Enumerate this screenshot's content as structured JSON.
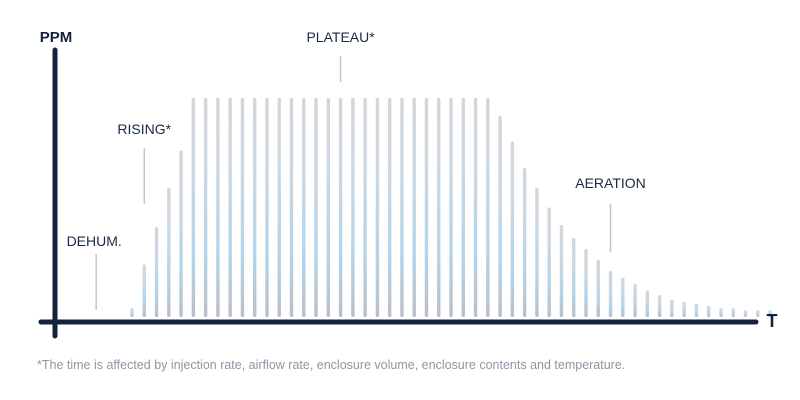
{
  "chart_data": {
    "type": "bar",
    "title": "",
    "ylabel": "PPM",
    "xlabel": "T",
    "ylim": [
      0,
      100
    ],
    "values": [
      4,
      24,
      41,
      59,
      76,
      100,
      100,
      100,
      100,
      100,
      100,
      100,
      100,
      100,
      100,
      100,
      100,
      100,
      100,
      100,
      100,
      100,
      100,
      100,
      100,
      100,
      100,
      100,
      100,
      100,
      92,
      80,
      68,
      59,
      50,
      42,
      36,
      31,
      26,
      21,
      18,
      15,
      12,
      10,
      8,
      7,
      6,
      5,
      4,
      4,
      3,
      3,
      3
    ],
    "annotations": [
      {
        "label": "DEHUM.",
        "bar_index": -3
      },
      {
        "label": "RISING*",
        "bar_index": 1
      },
      {
        "label": "PLATEAU*",
        "bar_index": 17
      },
      {
        "label": "AERATION",
        "bar_index": 39
      }
    ],
    "footnote": "*The time is affected by injection rate, airflow rate, enclosure volume, enclosure contents and temperature.",
    "colors": {
      "axis": "#14223d",
      "bar_top": "#d3d6da",
      "bar_mid": "#b3d4ea",
      "bar_bottom": "#b9bfc6",
      "annotation_line": "#c2c6cc",
      "label_text": "#1b2a44",
      "footnote_text": "#8f96a3"
    }
  }
}
